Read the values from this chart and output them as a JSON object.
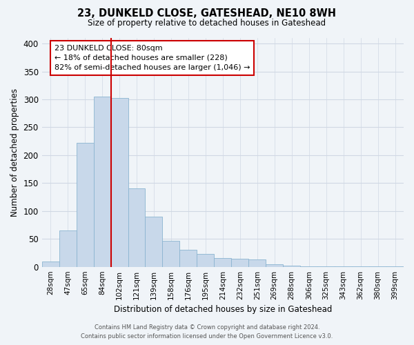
{
  "title": "23, DUNKELD CLOSE, GATESHEAD, NE10 8WH",
  "subtitle": "Size of property relative to detached houses in Gateshead",
  "xlabel": "Distribution of detached houses by size in Gateshead",
  "ylabel": "Number of detached properties",
  "bar_color": "#c8d8ea",
  "bar_edge_color": "#8ab4d0",
  "categories": [
    "28sqm",
    "47sqm",
    "65sqm",
    "84sqm",
    "102sqm",
    "121sqm",
    "139sqm",
    "158sqm",
    "176sqm",
    "195sqm",
    "214sqm",
    "232sqm",
    "251sqm",
    "269sqm",
    "288sqm",
    "306sqm",
    "325sqm",
    "343sqm",
    "362sqm",
    "380sqm",
    "399sqm"
  ],
  "values": [
    10,
    65,
    222,
    305,
    302,
    140,
    90,
    47,
    31,
    23,
    16,
    14,
    13,
    5,
    2,
    1,
    1,
    1,
    1,
    1,
    1
  ],
  "ylim": [
    0,
    410
  ],
  "yticks": [
    0,
    50,
    100,
    150,
    200,
    250,
    300,
    350,
    400
  ],
  "property_line_x": 3.5,
  "property_line_color": "#cc0000",
  "ann_line1": "23 DUNKELD CLOSE: 80sqm",
  "ann_line2": "← 18% of detached houses are smaller (228)",
  "ann_line3": "82% of semi-detached houses are larger (1,046) →",
  "annotation_box_color": "#ffffff",
  "annotation_box_edge": "#cc0000",
  "footer_line1": "Contains HM Land Registry data © Crown copyright and database right 2024.",
  "footer_line2": "Contains public sector information licensed under the Open Government Licence v3.0.",
  "bg_color": "#f0f4f8",
  "grid_color": "#d0d8e4"
}
